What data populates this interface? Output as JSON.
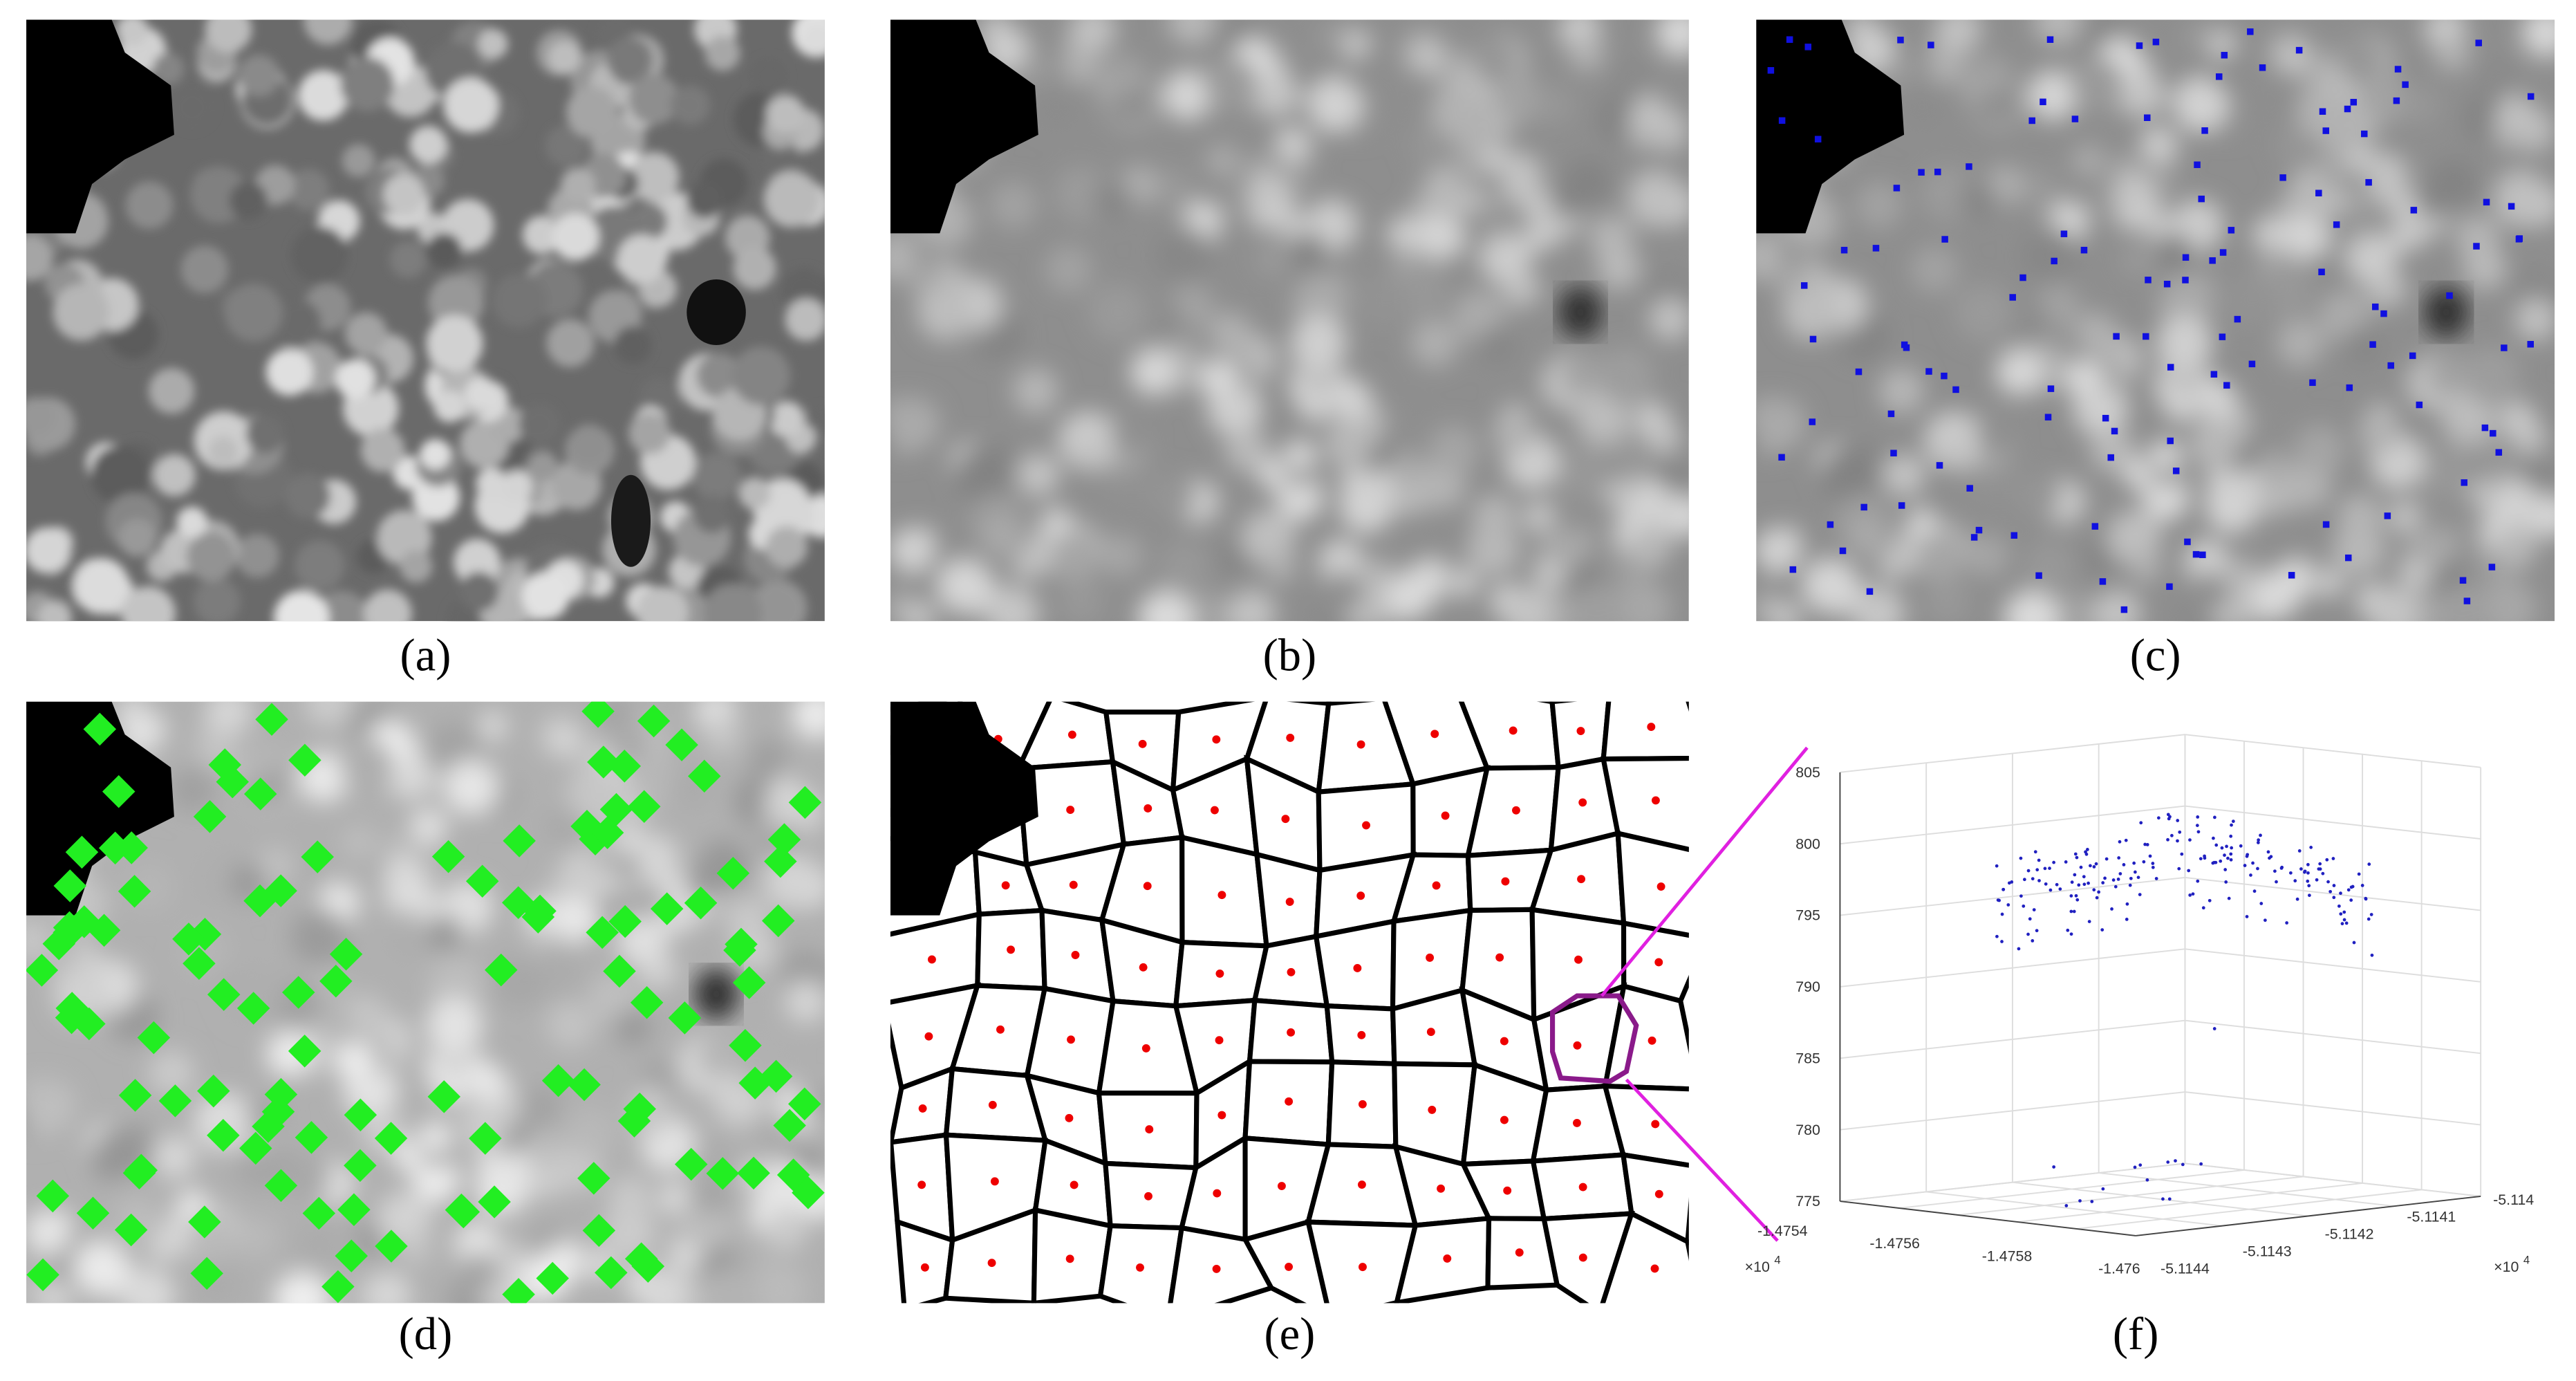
{
  "panels": [
    {
      "label": "(a)"
    },
    {
      "label": "(b)"
    },
    {
      "label": "(c)"
    },
    {
      "label": "(d)"
    },
    {
      "label": "(e)"
    },
    {
      "label": "(f)"
    }
  ],
  "plot_f": {
    "z_ticks": [
      "805",
      "800",
      "795",
      "790",
      "785",
      "780",
      "775"
    ],
    "x_ticks": [
      "-1.4754",
      "-1.4756",
      "-1.4758",
      "-1.476"
    ],
    "y_ticks": [
      "-5.1144",
      "-5.1143",
      "-5.1142",
      "-5.1141",
      "-5.114"
    ],
    "x_multiplier": {
      "base": "×10",
      "exp": "4"
    },
    "y_multiplier": {
      "base": "×10",
      "exp": "4"
    }
  }
}
